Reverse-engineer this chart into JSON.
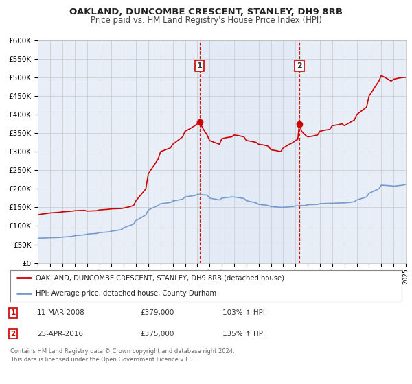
{
  "title": "OAKLAND, DUNCOMBE CRESCENT, STANLEY, DH9 8RB",
  "subtitle": "Price paid vs. HM Land Registry's House Price Index (HPI)",
  "background_color": "#e8eef8",
  "grid_color": "#c8c8c8",
  "xmin": 1995,
  "xmax": 2025,
  "ymin": 0,
  "ymax": 600000,
  "yticks": [
    0,
    50000,
    100000,
    150000,
    200000,
    250000,
    300000,
    350000,
    400000,
    450000,
    500000,
    550000,
    600000
  ],
  "red_color": "#cc0000",
  "blue_color": "#7799cc",
  "marker1_x": 2008.19,
  "marker1_y": 379000,
  "marker2_x": 2016.32,
  "marker2_y": 375000,
  "marker1_label": "1",
  "marker2_label": "2",
  "vline1_x": 2008.19,
  "vline2_x": 2016.32,
  "shade_xmin": 2008.19,
  "shade_xmax": 2016.32,
  "legend_label1": "OAKLAND, DUNCOMBE CRESCENT, STANLEY, DH9 8RB (detached house)",
  "legend_label2": "HPI: Average price, detached house, County Durham",
  "table_row1": [
    "1",
    "11-MAR-2008",
    "£379,000",
    "103% ↑ HPI"
  ],
  "table_row2": [
    "2",
    "25-APR-2016",
    "£375,000",
    "135% ↑ HPI"
  ],
  "footer": "Contains HM Land Registry data © Crown copyright and database right 2024.\nThis data is licensed under the Open Government Licence v3.0.",
  "red_hpi_data": [
    [
      1995.0,
      130000
    ],
    [
      1995.3,
      132000
    ],
    [
      1995.6,
      133000
    ],
    [
      1996.0,
      135000
    ],
    [
      1996.4,
      136000
    ],
    [
      1996.8,
      137000
    ],
    [
      1997.0,
      138000
    ],
    [
      1997.4,
      139000
    ],
    [
      1997.8,
      140000
    ],
    [
      1998.0,
      141000
    ],
    [
      1998.4,
      141500
    ],
    [
      1998.8,
      142000
    ],
    [
      1999.0,
      140000
    ],
    [
      1999.4,
      140500
    ],
    [
      1999.8,
      141000
    ],
    [
      2000.0,
      143000
    ],
    [
      2000.4,
      144000
    ],
    [
      2000.8,
      145000
    ],
    [
      2001.0,
      146000
    ],
    [
      2001.4,
      146500
    ],
    [
      2001.8,
      147000
    ],
    [
      2002.0,
      148000
    ],
    [
      2002.4,
      151000
    ],
    [
      2002.8,
      155000
    ],
    [
      2003.0,
      168000
    ],
    [
      2003.4,
      184000
    ],
    [
      2003.8,
      200000
    ],
    [
      2004.0,
      240000
    ],
    [
      2004.4,
      260000
    ],
    [
      2004.8,
      280000
    ],
    [
      2005.0,
      300000
    ],
    [
      2005.4,
      305000
    ],
    [
      2005.8,
      310000
    ],
    [
      2006.0,
      320000
    ],
    [
      2006.4,
      330000
    ],
    [
      2006.8,
      340000
    ],
    [
      2007.0,
      355000
    ],
    [
      2007.4,
      362000
    ],
    [
      2007.8,
      370000
    ],
    [
      2008.0,
      375000
    ],
    [
      2008.19,
      379000
    ],
    [
      2008.5,
      360000
    ],
    [
      2008.8,
      345000
    ],
    [
      2009.0,
      330000
    ],
    [
      2009.4,
      325000
    ],
    [
      2009.8,
      320000
    ],
    [
      2010.0,
      335000
    ],
    [
      2010.4,
      338000
    ],
    [
      2010.8,
      340000
    ],
    [
      2011.0,
      345000
    ],
    [
      2011.4,
      343000
    ],
    [
      2011.8,
      340000
    ],
    [
      2012.0,
      330000
    ],
    [
      2012.4,
      328000
    ],
    [
      2012.8,
      325000
    ],
    [
      2013.0,
      320000
    ],
    [
      2013.4,
      318000
    ],
    [
      2013.8,
      315000
    ],
    [
      2014.0,
      305000
    ],
    [
      2014.4,
      303000
    ],
    [
      2014.8,
      300000
    ],
    [
      2015.0,
      310000
    ],
    [
      2015.4,
      318000
    ],
    [
      2015.8,
      325000
    ],
    [
      2016.0,
      330000
    ],
    [
      2016.19,
      333000
    ],
    [
      2016.32,
      375000
    ],
    [
      2016.5,
      355000
    ],
    [
      2016.8,
      345000
    ],
    [
      2017.0,
      340000
    ],
    [
      2017.4,
      342000
    ],
    [
      2017.8,
      345000
    ],
    [
      2018.0,
      355000
    ],
    [
      2018.4,
      358000
    ],
    [
      2018.8,
      360000
    ],
    [
      2019.0,
      370000
    ],
    [
      2019.4,
      372000
    ],
    [
      2019.8,
      375000
    ],
    [
      2020.0,
      370000
    ],
    [
      2020.4,
      378000
    ],
    [
      2020.8,
      385000
    ],
    [
      2021.0,
      400000
    ],
    [
      2021.4,
      410000
    ],
    [
      2021.8,
      420000
    ],
    [
      2022.0,
      450000
    ],
    [
      2022.4,
      470000
    ],
    [
      2022.8,
      490000
    ],
    [
      2023.0,
      505000
    ],
    [
      2023.4,
      498000
    ],
    [
      2023.8,
      490000
    ],
    [
      2024.0,
      495000
    ],
    [
      2024.4,
      498000
    ],
    [
      2024.8,
      500000
    ],
    [
      2025.0,
      500000
    ]
  ],
  "blue_hpi_data": [
    [
      1995.0,
      67000
    ],
    [
      1995.4,
      67500
    ],
    [
      1995.8,
      68000
    ],
    [
      1996.0,
      68500
    ],
    [
      1996.4,
      68700
    ],
    [
      1996.8,
      69000
    ],
    [
      1997.0,
      70000
    ],
    [
      1997.4,
      71000
    ],
    [
      1997.8,
      72000
    ],
    [
      1998.0,
      74000
    ],
    [
      1998.4,
      75000
    ],
    [
      1998.8,
      76000
    ],
    [
      1999.0,
      78000
    ],
    [
      1999.4,
      79000
    ],
    [
      1999.8,
      80000
    ],
    [
      2000.0,
      82000
    ],
    [
      2000.4,
      83000
    ],
    [
      2000.8,
      84000
    ],
    [
      2001.0,
      86000
    ],
    [
      2001.4,
      88000
    ],
    [
      2001.8,
      90000
    ],
    [
      2002.0,
      95000
    ],
    [
      2002.4,
      100000
    ],
    [
      2002.8,
      105000
    ],
    [
      2003.0,
      115000
    ],
    [
      2003.4,
      122000
    ],
    [
      2003.8,
      130000
    ],
    [
      2004.0,
      143000
    ],
    [
      2004.4,
      149000
    ],
    [
      2004.8,
      155000
    ],
    [
      2005.0,
      160000
    ],
    [
      2005.4,
      161500
    ],
    [
      2005.8,
      163000
    ],
    [
      2006.0,
      167000
    ],
    [
      2006.4,
      169500
    ],
    [
      2006.8,
      172000
    ],
    [
      2007.0,
      178000
    ],
    [
      2007.4,
      180000
    ],
    [
      2007.8,
      182000
    ],
    [
      2008.0,
      185000
    ],
    [
      2008.4,
      184000
    ],
    [
      2008.8,
      183000
    ],
    [
      2009.0,
      175000
    ],
    [
      2009.4,
      172500
    ],
    [
      2009.8,
      170000
    ],
    [
      2010.0,
      175000
    ],
    [
      2010.4,
      176500
    ],
    [
      2010.8,
      178000
    ],
    [
      2011.0,
      178000
    ],
    [
      2011.4,
      176000
    ],
    [
      2011.8,
      174000
    ],
    [
      2012.0,
      168000
    ],
    [
      2012.4,
      165000
    ],
    [
      2012.8,
      162000
    ],
    [
      2013.0,
      158000
    ],
    [
      2013.4,
      156500
    ],
    [
      2013.8,
      155000
    ],
    [
      2014.0,
      152000
    ],
    [
      2014.4,
      151000
    ],
    [
      2014.8,
      150000
    ],
    [
      2015.0,
      150000
    ],
    [
      2015.4,
      151000
    ],
    [
      2015.8,
      152000
    ],
    [
      2016.0,
      154000
    ],
    [
      2016.4,
      154500
    ],
    [
      2016.8,
      155000
    ],
    [
      2017.0,
      157000
    ],
    [
      2017.4,
      157500
    ],
    [
      2017.8,
      158000
    ],
    [
      2018.0,
      160000
    ],
    [
      2018.4,
      160500
    ],
    [
      2018.8,
      161000
    ],
    [
      2019.0,
      161000
    ],
    [
      2019.4,
      161500
    ],
    [
      2019.8,
      162000
    ],
    [
      2020.0,
      162000
    ],
    [
      2020.4,
      163500
    ],
    [
      2020.8,
      165000
    ],
    [
      2021.0,
      170000
    ],
    [
      2021.4,
      174000
    ],
    [
      2021.8,
      178000
    ],
    [
      2022.0,
      188000
    ],
    [
      2022.4,
      194000
    ],
    [
      2022.8,
      200000
    ],
    [
      2023.0,
      210000
    ],
    [
      2023.4,
      209000
    ],
    [
      2023.8,
      208000
    ],
    [
      2024.0,
      207000
    ],
    [
      2024.4,
      208500
    ],
    [
      2024.8,
      210000
    ],
    [
      2025.0,
      212000
    ]
  ]
}
